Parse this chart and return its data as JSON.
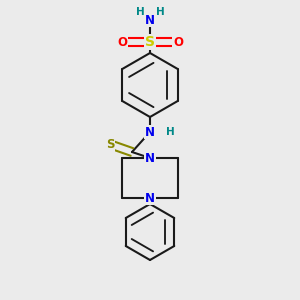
{
  "bg_color": "#ebebeb",
  "bond_color": "#1a1a1a",
  "bond_width": 1.5,
  "atom_colors": {
    "N": "#0000ee",
    "O": "#ff0000",
    "S_sulfonyl": "#cccc00",
    "S_thio": "#888800",
    "H": "#008888",
    "C": "#1a1a1a"
  },
  "font_size_atom": 8.5,
  "font_size_H": 7.5
}
